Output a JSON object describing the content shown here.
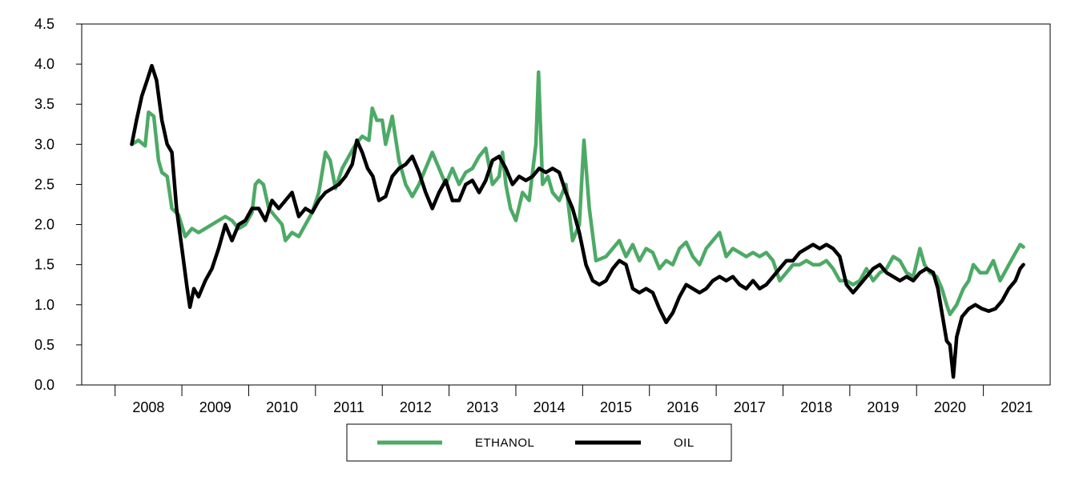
{
  "chart_data": {
    "type": "line",
    "title": "",
    "xlabel": "",
    "ylabel": "",
    "xlim": [
      2007.0,
      2021.5
    ],
    "ylim": [
      0.0,
      4.5
    ],
    "y_ticks": [
      "0.0",
      "0.5",
      "1.0",
      "1.5",
      "2.0",
      "2.5",
      "3.0",
      "3.5",
      "4.0",
      "4.5"
    ],
    "x_ticks": [
      "2008",
      "2009",
      "2010",
      "2011",
      "2012",
      "2013",
      "2014",
      "2015",
      "2016",
      "2017",
      "2018",
      "2019",
      "2020",
      "2021"
    ],
    "grid": false,
    "legend_position": "bottom-center",
    "series": [
      {
        "name": "ETHANOL",
        "color": "#4daa66",
        "points": [
          [
            2007.75,
            3.0
          ],
          [
            2007.85,
            3.05
          ],
          [
            2007.95,
            2.98
          ],
          [
            2008.0,
            3.4
          ],
          [
            2008.08,
            3.35
          ],
          [
            2008.15,
            2.8
          ],
          [
            2008.2,
            2.65
          ],
          [
            2008.28,
            2.6
          ],
          [
            2008.35,
            2.2
          ],
          [
            2008.45,
            2.12
          ],
          [
            2008.55,
            1.85
          ],
          [
            2008.65,
            1.95
          ],
          [
            2008.75,
            1.9
          ],
          [
            2008.85,
            1.95
          ],
          [
            2008.95,
            2.0
          ],
          [
            2009.05,
            2.05
          ],
          [
            2009.15,
            2.1
          ],
          [
            2009.25,
            2.05
          ],
          [
            2009.35,
            1.95
          ],
          [
            2009.45,
            2.0
          ],
          [
            2009.55,
            2.15
          ],
          [
            2009.6,
            2.5
          ],
          [
            2009.65,
            2.55
          ],
          [
            2009.72,
            2.5
          ],
          [
            2009.8,
            2.2
          ],
          [
            2009.9,
            2.1
          ],
          [
            2010.0,
            2.0
          ],
          [
            2010.05,
            1.8
          ],
          [
            2010.15,
            1.9
          ],
          [
            2010.25,
            1.85
          ],
          [
            2010.35,
            2.0
          ],
          [
            2010.45,
            2.15
          ],
          [
            2010.55,
            2.4
          ],
          [
            2010.65,
            2.9
          ],
          [
            2010.72,
            2.8
          ],
          [
            2010.8,
            2.45
          ],
          [
            2010.9,
            2.7
          ],
          [
            2011.0,
            2.85
          ],
          [
            2011.1,
            3.0
          ],
          [
            2011.2,
            3.1
          ],
          [
            2011.3,
            3.05
          ],
          [
            2011.35,
            3.45
          ],
          [
            2011.42,
            3.3
          ],
          [
            2011.5,
            3.3
          ],
          [
            2011.55,
            3.0
          ],
          [
            2011.65,
            3.35
          ],
          [
            2011.75,
            2.8
          ],
          [
            2011.85,
            2.5
          ],
          [
            2011.95,
            2.35
          ],
          [
            2012.05,
            2.5
          ],
          [
            2012.15,
            2.7
          ],
          [
            2012.25,
            2.9
          ],
          [
            2012.35,
            2.7
          ],
          [
            2012.45,
            2.5
          ],
          [
            2012.55,
            2.7
          ],
          [
            2012.65,
            2.5
          ],
          [
            2012.75,
            2.65
          ],
          [
            2012.85,
            2.7
          ],
          [
            2012.95,
            2.85
          ],
          [
            2013.05,
            2.95
          ],
          [
            2013.15,
            2.5
          ],
          [
            2013.25,
            2.6
          ],
          [
            2013.3,
            2.9
          ],
          [
            2013.35,
            2.5
          ],
          [
            2013.42,
            2.2
          ],
          [
            2013.5,
            2.05
          ],
          [
            2013.6,
            2.4
          ],
          [
            2013.7,
            2.3
          ],
          [
            2013.8,
            3.0
          ],
          [
            2013.84,
            3.9
          ],
          [
            2013.9,
            2.5
          ],
          [
            2013.98,
            2.6
          ],
          [
            2014.05,
            2.4
          ],
          [
            2014.15,
            2.3
          ],
          [
            2014.25,
            2.5
          ],
          [
            2014.35,
            1.8
          ],
          [
            2014.45,
            2.0
          ],
          [
            2014.52,
            3.05
          ],
          [
            2014.6,
            2.2
          ],
          [
            2014.7,
            1.55
          ],
          [
            2014.85,
            1.6
          ],
          [
            2014.95,
            1.7
          ],
          [
            2015.05,
            1.8
          ],
          [
            2015.15,
            1.6
          ],
          [
            2015.25,
            1.75
          ],
          [
            2015.35,
            1.55
          ],
          [
            2015.45,
            1.7
          ],
          [
            2015.55,
            1.65
          ],
          [
            2015.65,
            1.45
          ],
          [
            2015.75,
            1.55
          ],
          [
            2015.85,
            1.5
          ],
          [
            2015.95,
            1.7
          ],
          [
            2016.05,
            1.78
          ],
          [
            2016.15,
            1.6
          ],
          [
            2016.25,
            1.5
          ],
          [
            2016.35,
            1.7
          ],
          [
            2016.45,
            1.8
          ],
          [
            2016.55,
            1.9
          ],
          [
            2016.65,
            1.6
          ],
          [
            2016.75,
            1.7
          ],
          [
            2016.85,
            1.65
          ],
          [
            2016.95,
            1.6
          ],
          [
            2017.05,
            1.65
          ],
          [
            2017.15,
            1.6
          ],
          [
            2017.25,
            1.65
          ],
          [
            2017.35,
            1.55
          ],
          [
            2017.45,
            1.3
          ],
          [
            2017.55,
            1.4
          ],
          [
            2017.65,
            1.5
          ],
          [
            2017.75,
            1.5
          ],
          [
            2017.85,
            1.55
          ],
          [
            2017.95,
            1.5
          ],
          [
            2018.05,
            1.5
          ],
          [
            2018.15,
            1.55
          ],
          [
            2018.25,
            1.45
          ],
          [
            2018.35,
            1.3
          ],
          [
            2018.45,
            1.3
          ],
          [
            2018.55,
            1.25
          ],
          [
            2018.65,
            1.3
          ],
          [
            2018.75,
            1.45
          ],
          [
            2018.85,
            1.3
          ],
          [
            2018.95,
            1.4
          ],
          [
            2019.05,
            1.45
          ],
          [
            2019.15,
            1.6
          ],
          [
            2019.25,
            1.55
          ],
          [
            2019.35,
            1.4
          ],
          [
            2019.45,
            1.35
          ],
          [
            2019.55,
            1.7
          ],
          [
            2019.62,
            1.5
          ],
          [
            2019.7,
            1.4
          ],
          [
            2019.8,
            1.35
          ],
          [
            2019.88,
            1.2
          ],
          [
            2019.95,
            1.0
          ],
          [
            2020.0,
            0.88
          ],
          [
            2020.1,
            1.0
          ],
          [
            2020.2,
            1.2
          ],
          [
            2020.28,
            1.3
          ],
          [
            2020.35,
            1.5
          ],
          [
            2020.45,
            1.4
          ],
          [
            2020.55,
            1.4
          ],
          [
            2020.65,
            1.55
          ],
          [
            2020.75,
            1.3
          ],
          [
            2020.85,
            1.45
          ],
          [
            2020.95,
            1.6
          ],
          [
            2021.05,
            1.75
          ],
          [
            2021.1,
            1.72
          ]
        ]
      },
      {
        "name": "OIL",
        "color": "#000000",
        "points": [
          [
            2007.75,
            3.0
          ],
          [
            2007.82,
            3.3
          ],
          [
            2007.9,
            3.6
          ],
          [
            2007.98,
            3.8
          ],
          [
            2008.05,
            3.98
          ],
          [
            2008.12,
            3.8
          ],
          [
            2008.2,
            3.3
          ],
          [
            2008.28,
            3.0
          ],
          [
            2008.35,
            2.9
          ],
          [
            2008.42,
            2.2
          ],
          [
            2008.5,
            1.7
          ],
          [
            2008.58,
            1.2
          ],
          [
            2008.62,
            0.97
          ],
          [
            2008.68,
            1.2
          ],
          [
            2008.75,
            1.1
          ],
          [
            2008.85,
            1.3
          ],
          [
            2008.95,
            1.45
          ],
          [
            2009.05,
            1.7
          ],
          [
            2009.15,
            2.0
          ],
          [
            2009.25,
            1.8
          ],
          [
            2009.35,
            2.0
          ],
          [
            2009.45,
            2.05
          ],
          [
            2009.55,
            2.2
          ],
          [
            2009.65,
            2.2
          ],
          [
            2009.75,
            2.05
          ],
          [
            2009.85,
            2.3
          ],
          [
            2009.95,
            2.2
          ],
          [
            2010.05,
            2.3
          ],
          [
            2010.15,
            2.4
          ],
          [
            2010.25,
            2.1
          ],
          [
            2010.35,
            2.2
          ],
          [
            2010.45,
            2.15
          ],
          [
            2010.55,
            2.3
          ],
          [
            2010.65,
            2.4
          ],
          [
            2010.75,
            2.45
          ],
          [
            2010.85,
            2.5
          ],
          [
            2010.95,
            2.6
          ],
          [
            2011.05,
            2.75
          ],
          [
            2011.12,
            3.05
          ],
          [
            2011.2,
            2.9
          ],
          [
            2011.28,
            2.7
          ],
          [
            2011.36,
            2.6
          ],
          [
            2011.45,
            2.3
          ],
          [
            2011.55,
            2.35
          ],
          [
            2011.65,
            2.6
          ],
          [
            2011.75,
            2.7
          ],
          [
            2011.85,
            2.75
          ],
          [
            2011.95,
            2.85
          ],
          [
            2012.05,
            2.65
          ],
          [
            2012.15,
            2.4
          ],
          [
            2012.25,
            2.2
          ],
          [
            2012.35,
            2.4
          ],
          [
            2012.45,
            2.55
          ],
          [
            2012.55,
            2.3
          ],
          [
            2012.65,
            2.3
          ],
          [
            2012.75,
            2.5
          ],
          [
            2012.85,
            2.55
          ],
          [
            2012.95,
            2.4
          ],
          [
            2013.05,
            2.55
          ],
          [
            2013.15,
            2.8
          ],
          [
            2013.25,
            2.85
          ],
          [
            2013.35,
            2.7
          ],
          [
            2013.45,
            2.5
          ],
          [
            2013.55,
            2.6
          ],
          [
            2013.65,
            2.55
          ],
          [
            2013.75,
            2.6
          ],
          [
            2013.85,
            2.7
          ],
          [
            2013.95,
            2.65
          ],
          [
            2014.05,
            2.7
          ],
          [
            2014.15,
            2.65
          ],
          [
            2014.25,
            2.4
          ],
          [
            2014.35,
            2.2
          ],
          [
            2014.45,
            1.9
          ],
          [
            2014.55,
            1.5
          ],
          [
            2014.65,
            1.3
          ],
          [
            2014.75,
            1.25
          ],
          [
            2014.85,
            1.3
          ],
          [
            2014.95,
            1.45
          ],
          [
            2015.05,
            1.55
          ],
          [
            2015.15,
            1.5
          ],
          [
            2015.25,
            1.2
          ],
          [
            2015.35,
            1.15
          ],
          [
            2015.45,
            1.2
          ],
          [
            2015.55,
            1.15
          ],
          [
            2015.65,
            0.95
          ],
          [
            2015.75,
            0.78
          ],
          [
            2015.85,
            0.9
          ],
          [
            2015.95,
            1.1
          ],
          [
            2016.05,
            1.25
          ],
          [
            2016.15,
            1.2
          ],
          [
            2016.25,
            1.15
          ],
          [
            2016.35,
            1.2
          ],
          [
            2016.45,
            1.3
          ],
          [
            2016.55,
            1.35
          ],
          [
            2016.65,
            1.3
          ],
          [
            2016.75,
            1.35
          ],
          [
            2016.85,
            1.25
          ],
          [
            2016.95,
            1.2
          ],
          [
            2017.05,
            1.3
          ],
          [
            2017.15,
            1.2
          ],
          [
            2017.25,
            1.25
          ],
          [
            2017.35,
            1.35
          ],
          [
            2017.45,
            1.45
          ],
          [
            2017.55,
            1.55
          ],
          [
            2017.65,
            1.55
          ],
          [
            2017.75,
            1.65
          ],
          [
            2017.85,
            1.7
          ],
          [
            2017.95,
            1.75
          ],
          [
            2018.05,
            1.7
          ],
          [
            2018.15,
            1.75
          ],
          [
            2018.25,
            1.7
          ],
          [
            2018.35,
            1.6
          ],
          [
            2018.45,
            1.25
          ],
          [
            2018.55,
            1.15
          ],
          [
            2018.65,
            1.25
          ],
          [
            2018.75,
            1.35
          ],
          [
            2018.85,
            1.45
          ],
          [
            2018.95,
            1.5
          ],
          [
            2019.05,
            1.4
          ],
          [
            2019.15,
            1.35
          ],
          [
            2019.25,
            1.3
          ],
          [
            2019.35,
            1.35
          ],
          [
            2019.45,
            1.3
          ],
          [
            2019.55,
            1.4
          ],
          [
            2019.65,
            1.45
          ],
          [
            2019.75,
            1.4
          ],
          [
            2019.82,
            1.2
          ],
          [
            2019.88,
            0.9
          ],
          [
            2019.95,
            0.55
          ],
          [
            2020.0,
            0.5
          ],
          [
            2020.05,
            0.1
          ],
          [
            2020.1,
            0.6
          ],
          [
            2020.18,
            0.85
          ],
          [
            2020.28,
            0.95
          ],
          [
            2020.38,
            1.0
          ],
          [
            2020.48,
            0.95
          ],
          [
            2020.58,
            0.92
          ],
          [
            2020.68,
            0.95
          ],
          [
            2020.78,
            1.05
          ],
          [
            2020.88,
            1.2
          ],
          [
            2020.98,
            1.3
          ],
          [
            2021.05,
            1.45
          ],
          [
            2021.1,
            1.5
          ]
        ]
      }
    ]
  }
}
